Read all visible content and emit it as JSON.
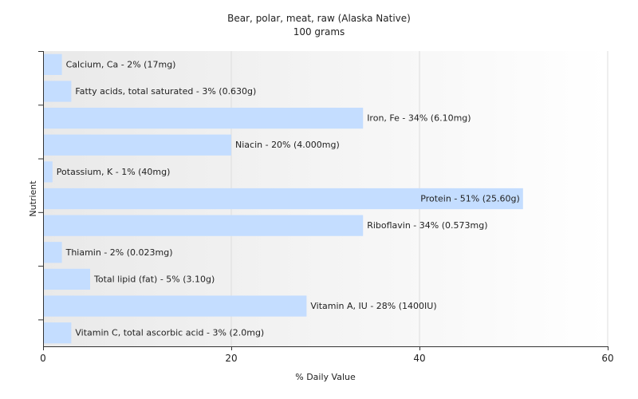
{
  "chart_data": {
    "type": "bar",
    "orientation": "horizontal",
    "title": "Bear, polar, meat, raw (Alaska Native)",
    "subtitle": "100 grams",
    "xlabel": "% Daily Value",
    "ylabel": "Nutrient",
    "xlim": [
      0,
      60
    ],
    "xticks": [
      0,
      20,
      40,
      60
    ],
    "grid": true,
    "legend": "none",
    "bar_color": "#c4ddff",
    "categories": [
      "Calcium, Ca",
      "Fatty acids, total saturated",
      "Iron, Fe",
      "Niacin",
      "Potassium, K",
      "Protein",
      "Riboflavin",
      "Thiamin",
      "Total lipid (fat)",
      "Vitamin A, IU",
      "Vitamin C, total ascorbic acid"
    ],
    "values": [
      2,
      3,
      34,
      20,
      1,
      51,
      34,
      2,
      5,
      28,
      3
    ],
    "data_labels": [
      "Calcium, Ca - 2% (17mg)",
      "Fatty acids, total saturated - 3% (0.630g)",
      "Iron, Fe - 34% (6.10mg)",
      "Niacin - 20% (4.000mg)",
      "Potassium, K - 1% (40mg)",
      "Protein - 51% (25.60g)",
      "Riboflavin - 34% (0.573mg)",
      "Thiamin - 2% (0.023mg)",
      "Total lipid (fat) - 5% (3.10g)",
      "Vitamin A, IU - 28% (1400IU)",
      "Vitamin C, total ascorbic acid - 3% (2.0mg)"
    ]
  }
}
